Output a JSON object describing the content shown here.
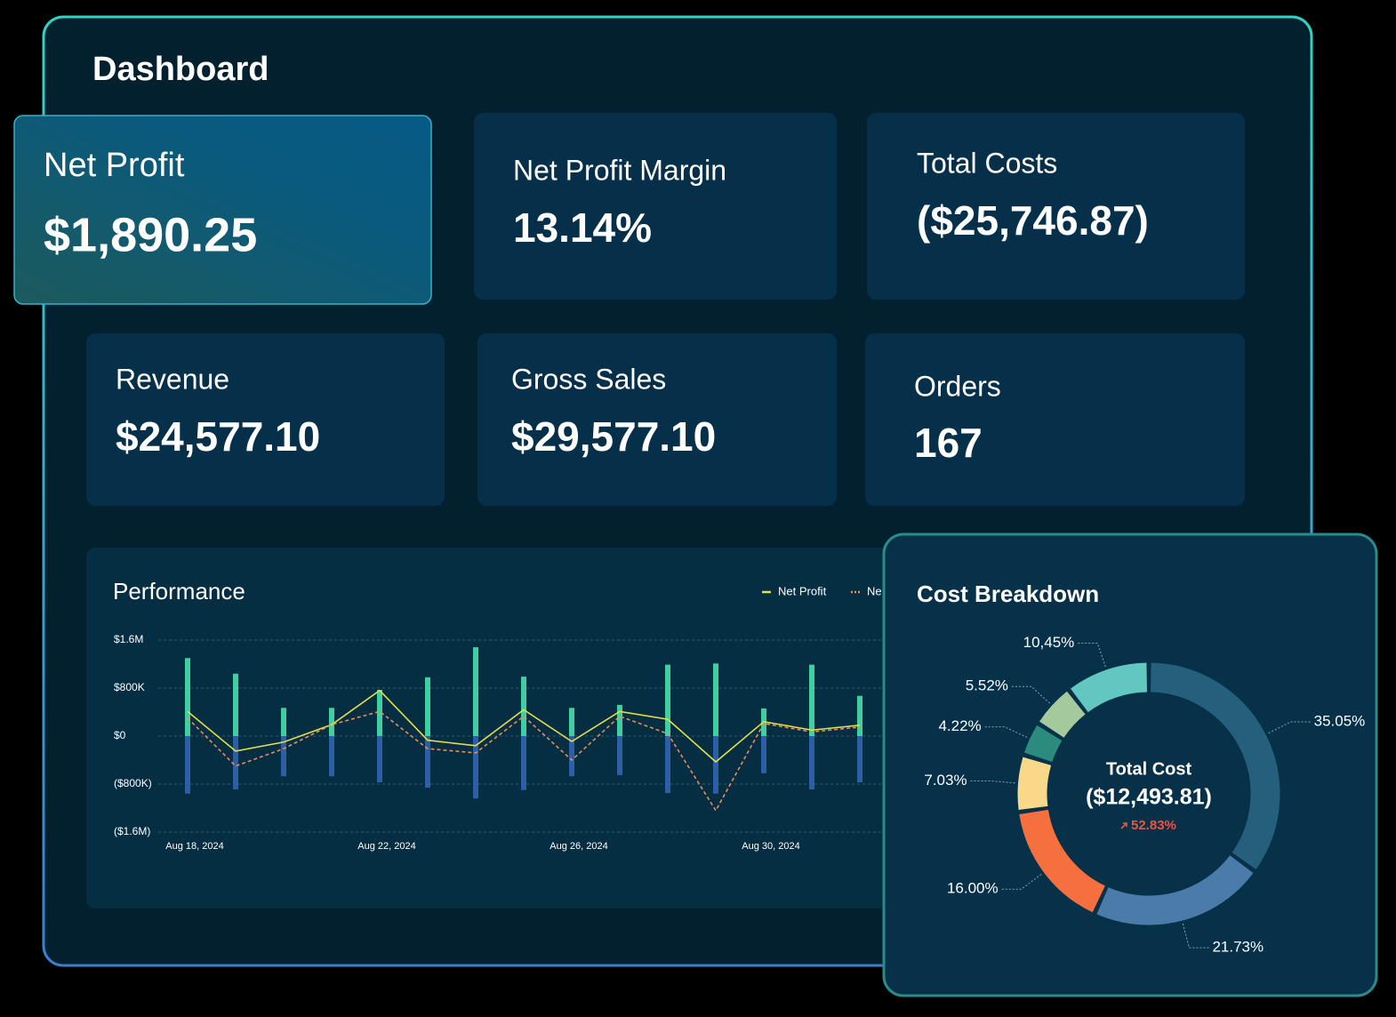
{
  "title": "Dashboard",
  "kpis": [
    {
      "label": "Net Profit",
      "value": "$1,890.25"
    },
    {
      "label": "Net Profit Margin",
      "value": "13.14%"
    },
    {
      "label": "Total Costs",
      "value": "($25,746.87)"
    },
    {
      "label": "Revenue",
      "value": "$24,577.10"
    },
    {
      "label": "Gross Sales",
      "value": "$29,577.10"
    },
    {
      "label": "Orders",
      "value": "167"
    }
  ],
  "chart_data": [
    {
      "type": "combo",
      "title": "Performance",
      "categories": [
        "Aug 18, 2024",
        null,
        null,
        null,
        "Aug 22, 2024",
        null,
        null,
        null,
        "Aug 26, 2024",
        null,
        null,
        null,
        "Aug 30, 2024",
        null,
        null
      ],
      "series": [
        {
          "type": "bar",
          "color": "#3fd0a2",
          "values": [
            1300000,
            1040000,
            470000,
            470000,
            770000,
            980000,
            1480000,
            990000,
            470000,
            520000,
            1190000,
            1210000,
            460000,
            1190000,
            670000
          ]
        },
        {
          "type": "bar",
          "color": "#2d5ea8",
          "values": [
            -960000,
            -890000,
            -670000,
            -670000,
            -770000,
            -860000,
            -1040000,
            -900000,
            -670000,
            -650000,
            -950000,
            -960000,
            -620000,
            -890000,
            -770000
          ]
        },
        {
          "name": "Net Profit",
          "type": "line",
          "color": "#e3de4a",
          "values": [
            410000,
            -250000,
            -100000,
            190000,
            760000,
            -70000,
            -160000,
            440000,
            -90000,
            410000,
            280000,
            -430000,
            240000,
            100000,
            180000
          ]
        },
        {
          "name": "Ne",
          "type": "line",
          "dashed": true,
          "color": "#e58f5c",
          "values": [
            300000,
            -500000,
            -210000,
            190000,
            410000,
            -210000,
            -280000,
            330000,
            -400000,
            330000,
            40000,
            -1240000,
            210000,
            70000,
            150000
          ]
        }
      ],
      "ylim": [
        -1600000,
        1600000
      ],
      "yticks": [
        {
          "value": -1600000,
          "label": "($1.6M)"
        },
        {
          "value": -800000,
          "label": "($800K)"
        },
        {
          "value": 0,
          "label": "$0"
        },
        {
          "value": 800000,
          "label": "$800K"
        },
        {
          "value": 1600000,
          "label": "$1.6M"
        }
      ],
      "grid": true
    },
    {
      "type": "donut",
      "title": "Cost Breakdown",
      "center_label": "Total Cost",
      "center_value": "($12,493.81)",
      "change": "52.83%",
      "values": [
        35.05,
        21.73,
        16,
        7.03,
        4.22,
        5.52,
        10.45
      ],
      "value_labels": [
        "35.05%",
        "21.73%",
        "16.00%",
        "7.03%",
        "4.22%",
        "5.52%",
        "10,45%"
      ],
      "colors": [
        "#245f7c",
        "#4b7ba8",
        "#f5703e",
        "#f8d98a",
        "#2b8b7c",
        "#a4c99c",
        "#62c7c0"
      ]
    }
  ]
}
